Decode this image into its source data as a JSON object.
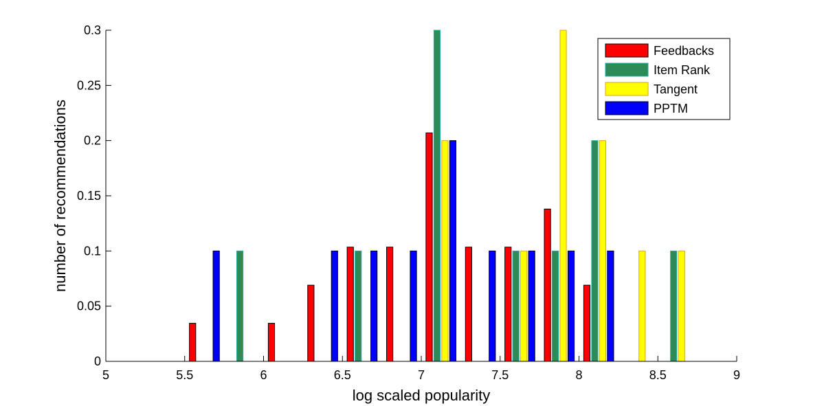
{
  "chart_data": {
    "type": "bar",
    "title": "",
    "xlabel": "log scaled popularity",
    "ylabel": "number of recommendations",
    "xlim": [
      5,
      9
    ],
    "ylim": [
      0,
      0.3
    ],
    "xticks": [
      "5",
      "5.5",
      "6",
      "6.5",
      "7",
      "7.5",
      "8",
      "8.5",
      "9"
    ],
    "yticks": [
      "0",
      "0.05",
      "0.1",
      "0.15",
      "0.2",
      "0.25",
      "0.3"
    ],
    "grid": false,
    "legend_position": "top-right",
    "bin_centers": [
      5.125,
      5.375,
      5.625,
      5.875,
      6.125,
      6.375,
      6.625,
      6.875,
      7.125,
      7.375,
      7.625,
      7.875,
      8.125,
      8.375,
      8.625,
      8.875
    ],
    "series": [
      {
        "name": "Feedbacks",
        "color": "#ff0000",
        "values": [
          0,
          0,
          0.0345,
          0,
          0.0345,
          0.069,
          0.1035,
          0.1035,
          0.207,
          0.1035,
          0.1035,
          0.138,
          0.069,
          0,
          0,
          0
        ]
      },
      {
        "name": "Item Rank",
        "color": "#2e8b57",
        "values": [
          0,
          0,
          0,
          0.1,
          0,
          0,
          0.1,
          0,
          0.3,
          0,
          0.1,
          0.1,
          0.2,
          0,
          0.1,
          0
        ]
      },
      {
        "name": "Tangent",
        "color": "#ffff00",
        "values": [
          0,
          0,
          0,
          0,
          0,
          0,
          0,
          0,
          0.2,
          0,
          0.1,
          0.3,
          0.2,
          0.1,
          0.1,
          0
        ]
      },
      {
        "name": "PPTM",
        "color": "#0000ff",
        "values": [
          0,
          0,
          0.1,
          0,
          0,
          0.1,
          0.1,
          0.1,
          0.2,
          0.1,
          0.1,
          0.1,
          0.1,
          0,
          0,
          0
        ]
      }
    ]
  }
}
